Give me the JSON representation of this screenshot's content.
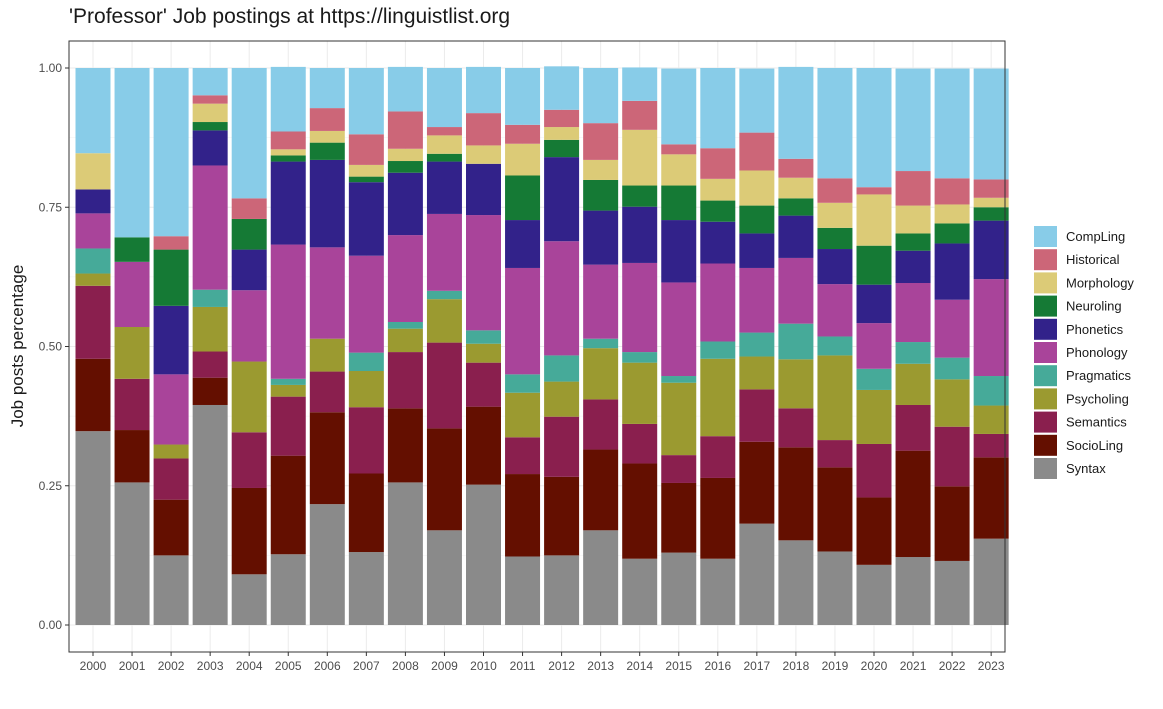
{
  "chart_data": {
    "type": "bar",
    "stacked": true,
    "title": "'Professor' Job postings at https://linguistlist.org",
    "xlabel": "",
    "ylabel": "Job posts percentage",
    "ylim": [
      0,
      1
    ],
    "y_ticks": [
      "0.00",
      "0.25",
      "0.50",
      "0.75",
      "1.00"
    ],
    "grid": true,
    "legend_position": "right",
    "categories": [
      "2000",
      "2001",
      "2002",
      "2003",
      "2004",
      "2005",
      "2006",
      "2007",
      "2008",
      "2009",
      "2010",
      "2011",
      "2012",
      "2013",
      "2014",
      "2015",
      "2016",
      "2017",
      "2018",
      "2019",
      "2020",
      "2021",
      "2022",
      "2023"
    ],
    "series": [
      {
        "name": "Syntax",
        "color": "#8a8a8a",
        "values": [
          0.348,
          0.256,
          0.125,
          0.395,
          0.091,
          0.127,
          0.217,
          0.131,
          0.256,
          0.17,
          0.252,
          0.123,
          0.125,
          0.17,
          0.119,
          0.13,
          0.119,
          0.182,
          0.152,
          0.132,
          0.108,
          0.122,
          0.115,
          0.155
        ]
      },
      {
        "name": "SocioLing",
        "color": "#640f00",
        "values": [
          0.13,
          0.094,
          0.1,
          0.049,
          0.155,
          0.177,
          0.165,
          0.141,
          0.133,
          0.183,
          0.14,
          0.148,
          0.141,
          0.145,
          0.171,
          0.125,
          0.145,
          0.147,
          0.167,
          0.151,
          0.121,
          0.191,
          0.134,
          0.146
        ]
      },
      {
        "name": "Semantics",
        "color": "#8a1f4e",
        "values": [
          0.131,
          0.092,
          0.074,
          0.047,
          0.1,
          0.106,
          0.073,
          0.119,
          0.101,
          0.154,
          0.079,
          0.066,
          0.108,
          0.09,
          0.071,
          0.05,
          0.075,
          0.094,
          0.07,
          0.049,
          0.096,
          0.082,
          0.107,
          0.042
        ]
      },
      {
        "name": "Psycholing",
        "color": "#9b9a30",
        "values": [
          0.022,
          0.093,
          0.025,
          0.08,
          0.127,
          0.021,
          0.059,
          0.065,
          0.042,
          0.078,
          0.034,
          0.08,
          0.063,
          0.092,
          0.11,
          0.13,
          0.139,
          0.059,
          0.088,
          0.152,
          0.097,
          0.074,
          0.085,
          0.051
        ]
      },
      {
        "name": "Pragmatics",
        "color": "#46aa99",
        "values": [
          0.045,
          0.0,
          0.0,
          0.031,
          0.0,
          0.011,
          0.0,
          0.033,
          0.012,
          0.015,
          0.024,
          0.033,
          0.047,
          0.017,
          0.019,
          0.012,
          0.031,
          0.043,
          0.064,
          0.034,
          0.038,
          0.039,
          0.039,
          0.053
        ]
      },
      {
        "name": "Phonology",
        "color": "#a9449a",
        "values": [
          0.063,
          0.117,
          0.126,
          0.223,
          0.128,
          0.241,
          0.164,
          0.174,
          0.156,
          0.138,
          0.207,
          0.191,
          0.205,
          0.133,
          0.16,
          0.168,
          0.14,
          0.116,
          0.118,
          0.094,
          0.082,
          0.106,
          0.104,
          0.174
        ]
      },
      {
        "name": "Phonetics",
        "color": "#32228a",
        "values": [
          0.043,
          0.0,
          0.123,
          0.063,
          0.073,
          0.149,
          0.157,
          0.132,
          0.112,
          0.094,
          0.092,
          0.086,
          0.151,
          0.097,
          0.101,
          0.112,
          0.075,
          0.062,
          0.076,
          0.063,
          0.069,
          0.058,
          0.101,
          0.105
        ]
      },
      {
        "name": "Neuroling",
        "color": "#157a35",
        "values": [
          0.0,
          0.044,
          0.101,
          0.015,
          0.055,
          0.011,
          0.031,
          0.01,
          0.021,
          0.014,
          0.0,
          0.08,
          0.031,
          0.055,
          0.038,
          0.062,
          0.038,
          0.05,
          0.031,
          0.038,
          0.07,
          0.031,
          0.036,
          0.024
        ]
      },
      {
        "name": "Morphology",
        "color": "#dccb77",
        "values": [
          0.065,
          0.0,
          0.0,
          0.033,
          0.0,
          0.011,
          0.021,
          0.021,
          0.022,
          0.033,
          0.033,
          0.057,
          0.023,
          0.036,
          0.1,
          0.056,
          0.039,
          0.063,
          0.037,
          0.045,
          0.092,
          0.05,
          0.034,
          0.017
        ]
      },
      {
        "name": "Historical",
        "color": "#cc6678",
        "values": [
          0.0,
          0.0,
          0.024,
          0.015,
          0.037,
          0.032,
          0.041,
          0.055,
          0.067,
          0.015,
          0.058,
          0.034,
          0.031,
          0.066,
          0.052,
          0.018,
          0.055,
          0.068,
          0.034,
          0.044,
          0.013,
          0.062,
          0.047,
          0.033
        ]
      },
      {
        "name": "CompLing",
        "color": "#88cce8",
        "values": [
          0.153,
          0.304,
          0.302,
          0.049,
          0.234,
          0.116,
          0.072,
          0.119,
          0.08,
          0.106,
          0.083,
          0.102,
          0.078,
          0.099,
          0.06,
          0.136,
          0.144,
          0.115,
          0.165,
          0.198,
          0.214,
          0.184,
          0.197,
          0.199
        ]
      }
    ],
    "legend_order": [
      "CompLing",
      "Historical",
      "Morphology",
      "Neuroling",
      "Phonetics",
      "Phonology",
      "Pragmatics",
      "Psycholing",
      "Semantics",
      "SocioLing",
      "Syntax"
    ]
  }
}
